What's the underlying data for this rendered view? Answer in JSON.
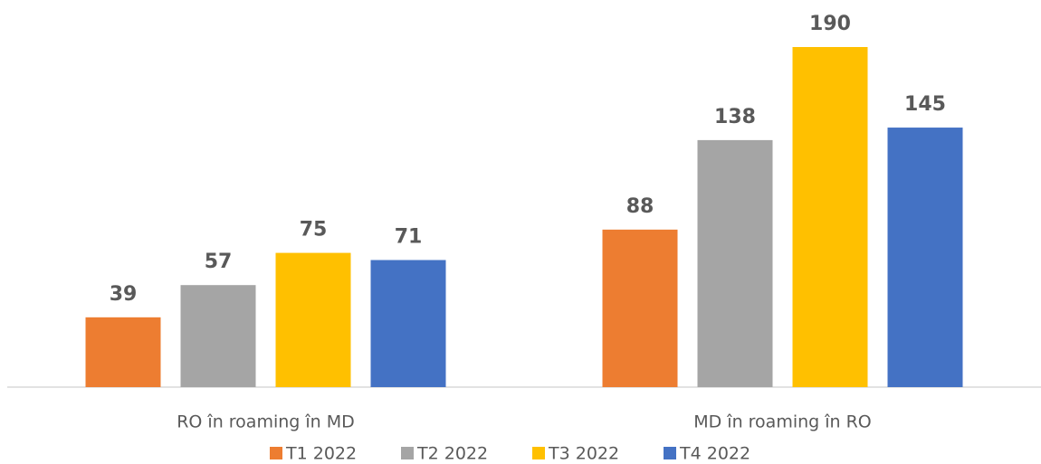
{
  "chart_data": {
    "type": "bar",
    "categories": [
      "RO în roaming în MD",
      "MD în roaming în RO"
    ],
    "series": [
      {
        "name": "T1 2022",
        "color": "#ed7d31",
        "values": [
          39,
          88
        ]
      },
      {
        "name": "T2 2022",
        "color": "#a5a5a5",
        "values": [
          57,
          138
        ]
      },
      {
        "name": "T3 2022",
        "color": "#ffc000",
        "values": [
          75,
          190
        ]
      },
      {
        "name": "T4 2022",
        "color": "#4472c4",
        "values": [
          71,
          145
        ]
      }
    ]
  }
}
